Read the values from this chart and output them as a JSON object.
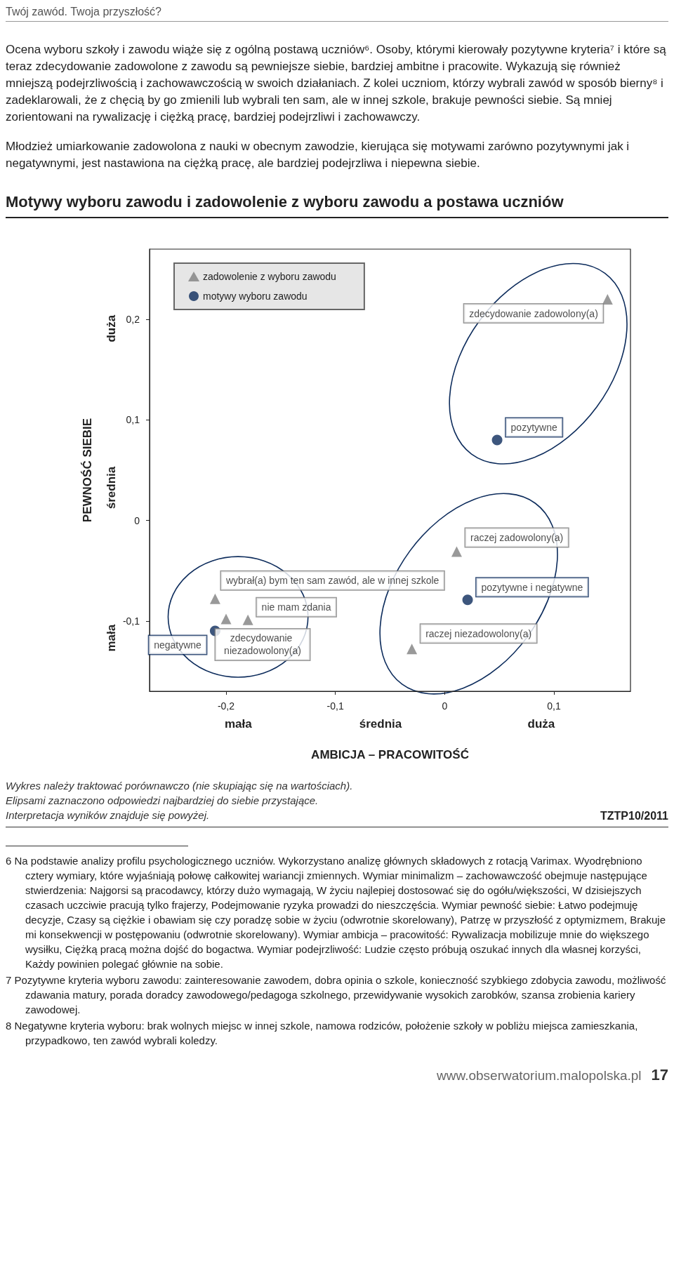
{
  "chart_data": {
    "type": "scatter",
    "title": "Motywy wyboru zawodu i zadowolenie z wyboru zawodu a postawa uczniów",
    "xlabel": "AMBICJA – PRACOWITOŚĆ",
    "ylabel": "PEWNOŚĆ SIEBIE",
    "xlim": [
      -0.27,
      0.17
    ],
    "ylim": [
      -0.17,
      0.27
    ],
    "xticks": [
      {
        "value": -0.2,
        "label": "-0,2"
      },
      {
        "value": -0.1,
        "label": "-0,1"
      },
      0,
      {
        "value": 0.1,
        "label": "0,1"
      }
    ],
    "yticks": [
      {
        "value": -0.1,
        "label": "-0,1"
      },
      0,
      {
        "value": 0.1,
        "label": "0,1"
      },
      {
        "value": 0.2,
        "label": "0,2"
      }
    ],
    "grid": false,
    "legend": "top left",
    "series": [
      {
        "name": "zadowolenie z wyboru zawodu",
        "color": "#808080",
        "marker": "triangle",
        "x": [
          0.149,
          0.011,
          -0.21,
          -0.2,
          -0.18,
          -0.03
        ],
        "values": [
          0.22,
          -0.031,
          -0.078,
          -0.098,
          -0.099,
          -0.128
        ],
        "value_labels": [
          "zdecydowanie zadowolony(a)",
          "raczej zadowolony(a)",
          "wybrał(a) bym ten sam zawód, ale w innej szkole",
          "zdecydowanie niezadowolony(a)",
          "nie mam zdania",
          "raczej niezadowolony(a)"
        ]
      },
      {
        "name": "motywy wyboru zawodu",
        "color": "#0d2c5c",
        "marker": "circle",
        "x": [
          0.048,
          0.021,
          -0.21
        ],
        "values": [
          0.08,
          -0.079,
          -0.11
        ],
        "value_labels": [
          "pozytywne",
          "pozytywne i negatywne",
          "negatywne"
        ]
      }
    ],
    "annotations": [
      "Twój zawód. Twoja przyszłość?",
      "Ocena wyboru szkoły i zawodu wiąże się z ogólną postawą uczniów⁶. Osoby, którymi kierowały pozytywne kryteria⁷ i które są teraz zdecydowanie zadowolone z zawodu są pewniejsze siebie, bardziej ambitne i pracowite. Wykazują się również mniejszą podejrzliwością i zachowawczością w swoich działaniach. Z kolei uczniom, którzy wybrali zawód w sposób bierny⁸ i zadeklarowali, że z chęcią by go zmienili lub wybrali ten sam, ale w innej szkole, brakuje pewności siebie. Są mniej zorientowani na rywalizację i ciężką pracę, bardziej podejrzliwi i zachowawczy.",
      "Młodzież umiarkowanie zadowolona z nauki w obecnym zawodzie, kierująca się motywami zarówno pozytywnymi jak i negatywnymi, jest nastawiona na ciężką pracę, ale bardziej podejrzliwa i niepewna siebie.",
      "mała",
      "średnia",
      "duża",
      "duża",
      "średnia",
      "mała",
      "Wykres należy traktować porównawczo (nie skupiając się na wartościach).",
      "Elipsami zaznaczono odpowiedzi najbardziej do siebie przystające.",
      "Interpretacja wyników znajduje się powyżej.",
      "TZTP10/2011",
      "6 Na podstawie analizy profilu psychologicznego uczniów. Wykorzystano analizę głównych składowych z rotacją Varimax. Wyodrębniono cztery wymiary, które wyjaśniają połowę całkowitej wariancji zmiennych. Wymiar minimalizm – zachowawczość obejmuje następujące stwierdzenia: Najgorsi są pracodawcy, którzy dużo wymagają, W życiu najlepiej dostosować się do ogółu/większości, W dzisiejszych czasach uczciwie pracują tylko frajerzy, Podejmowanie ryzyka prowadzi do nieszczęścia. Wymiar pewność siebie: Łatwo podejmuję decyzje, Czasy są ciężkie i obawiam się czy poradzę sobie w życiu (odwrotnie skorelowany), Patrzę w przyszłość z optymizmem, Brakuje mi konsekwencji w postępowaniu (odwrotnie skorelowany). Wymiar ambicja – pracowitość: Rywalizacja mobilizuje mnie do większego wysiłku, Ciężką pracą można dojść do bogactwa. Wymiar podejrzliwość: Ludzie często próbują oszukać innych dla własnej korzyści, Każdy powinien polegać głównie na sobie.",
      "7 Pozytywne kryteria wyboru zawodu: zainteresowanie zawodem, dobra opinia o szkole, konieczność szybkiego zdobycia zawodu, możliwość zdawania matury, porada doradcy zawodowego/pedagoga szkolnego, przewidywanie wysokich zarobków, szansa zrobienia kariery zawodowej.",
      "8 Negatywne kryteria wyboru: brak wolnych miejsc w innej szkole, namowa rodziców, położenie szkoły w pobliżu miejsca zamieszkania, przypadkowo, ten zawód wybrali koledzy.",
      "www.obserwatorium.malopolska.pl",
      "17"
    ]
  }
}
